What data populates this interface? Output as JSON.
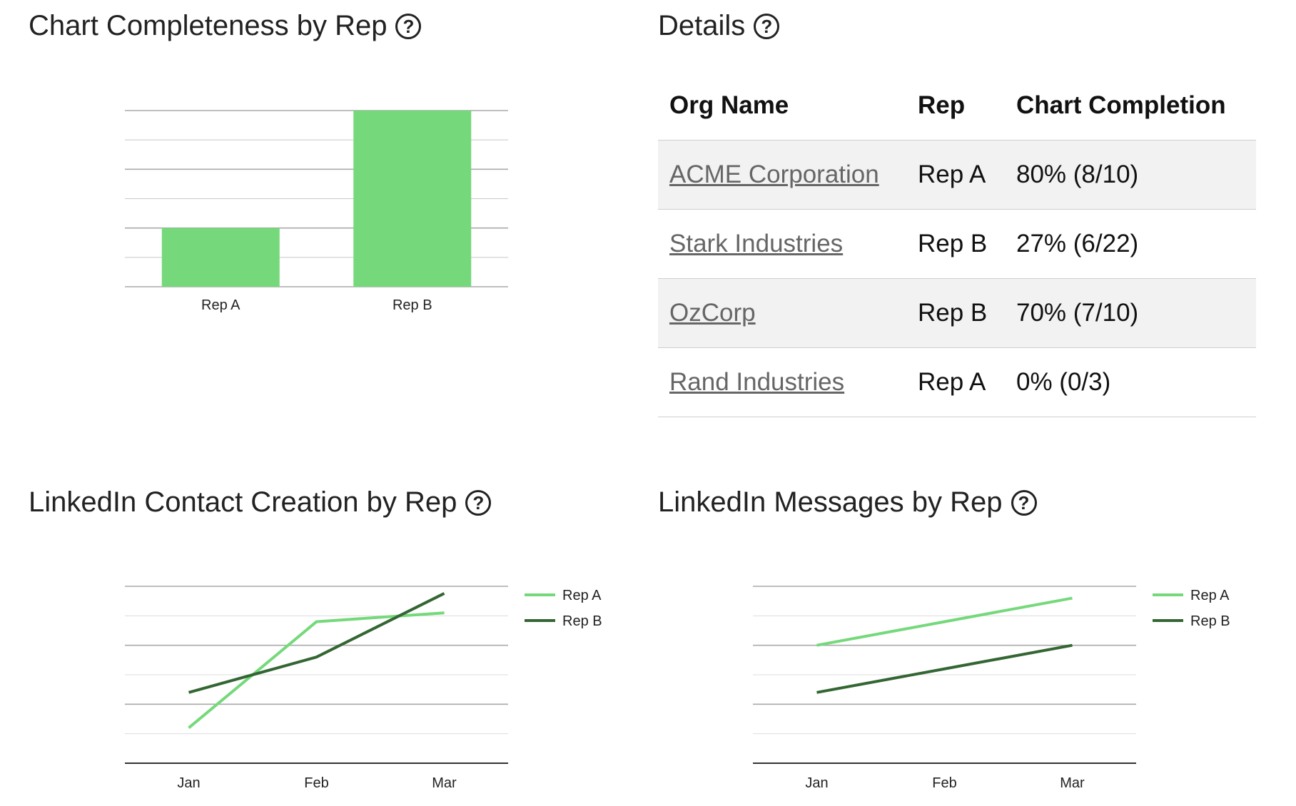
{
  "panels": {
    "completeness": {
      "title": "Chart Completeness by Rep",
      "help": "?"
    },
    "details": {
      "title": "Details",
      "help": "?"
    },
    "contacts": {
      "title": "LinkedIn Contact Creation by Rep",
      "help": "?"
    },
    "messages": {
      "title": "LinkedIn Messages by Rep",
      "help": "?"
    }
  },
  "table": {
    "headers": [
      "Org Name",
      "Rep",
      "Chart Completion"
    ],
    "rows": [
      {
        "org": "ACME Corporation",
        "rep": "Rep A",
        "completion": "80% (8/10)"
      },
      {
        "org": "Stark Industries",
        "rep": "Rep B",
        "completion": "27% (6/22)"
      },
      {
        "org": "OzCorp",
        "rep": "Rep B",
        "completion": "70% (7/10)"
      },
      {
        "org": "Rand Industries",
        "rep": "Rep A",
        "completion": "0% (0/3)"
      }
    ]
  },
  "colors": {
    "rep_a": "#75d97b",
    "rep_b": "#336633",
    "grid": "#c8c8c8",
    "grid_major": "#aaaaaa"
  },
  "chart_data": [
    {
      "id": "completeness",
      "type": "bar",
      "title": "Chart Completeness by Rep",
      "categories": [
        "Rep A",
        "Rep B"
      ],
      "values": [
        30,
        90
      ],
      "ylim": [
        0,
        90
      ],
      "grid": true
    },
    {
      "id": "contacts",
      "type": "line",
      "title": "LinkedIn Contact Creation by Rep",
      "categories": [
        "Jan",
        "Feb",
        "Mar"
      ],
      "series": [
        {
          "name": "Rep A",
          "values": [
            20,
            50,
            52.5
          ]
        },
        {
          "name": "Rep B",
          "values": [
            30,
            40,
            58
          ]
        }
      ],
      "ylim": [
        10,
        60
      ],
      "legend": "right"
    },
    {
      "id": "messages",
      "type": "line",
      "title": "LinkedIn Messages by Rep",
      "categories": [
        "Jan",
        "Feb",
        "Mar"
      ],
      "series": [
        {
          "name": "Rep A",
          "values": [
            40,
            48,
            56
          ]
        },
        {
          "name": "Rep B",
          "values": [
            24,
            32,
            40
          ]
        }
      ],
      "ylim": [
        0,
        60
      ],
      "legend": "right"
    }
  ]
}
